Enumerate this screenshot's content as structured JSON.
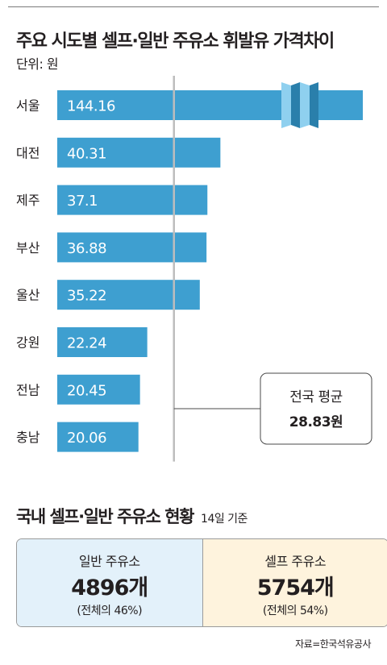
{
  "chart_data": {
    "type": "bar",
    "orientation": "horizontal",
    "title": "주요 시도별 셀프·일반 주유소 휘발유 가격차이",
    "unit_label": "단위: 원",
    "categories": [
      "서울",
      "대전",
      "제주",
      "부산",
      "울산",
      "강원",
      "전남",
      "충남"
    ],
    "values": [
      144.16,
      40.31,
      37.1,
      36.88,
      35.22,
      22.24,
      20.45,
      20.06
    ],
    "value_labels": [
      "144.16",
      "40.31",
      "37.1",
      "36.88",
      "35.22",
      "22.24",
      "20.45",
      "20.06"
    ],
    "average": {
      "label": "전국 평균",
      "value": 28.83,
      "value_label": "28.83원"
    },
    "axis_break_on": "서울",
    "bar_color": "#3e9fd0"
  },
  "stations": {
    "title": "국내 셀프·일반 주유소 현황",
    "subtitle": "14일 기준",
    "general": {
      "label": "일반 주유소",
      "count": "4896개",
      "share": "(전체의 46%)"
    },
    "self": {
      "label": "셀프 주유소",
      "count": "5754개",
      "share": "(전체의 54%)"
    }
  },
  "source": "자료=한국석유공사"
}
